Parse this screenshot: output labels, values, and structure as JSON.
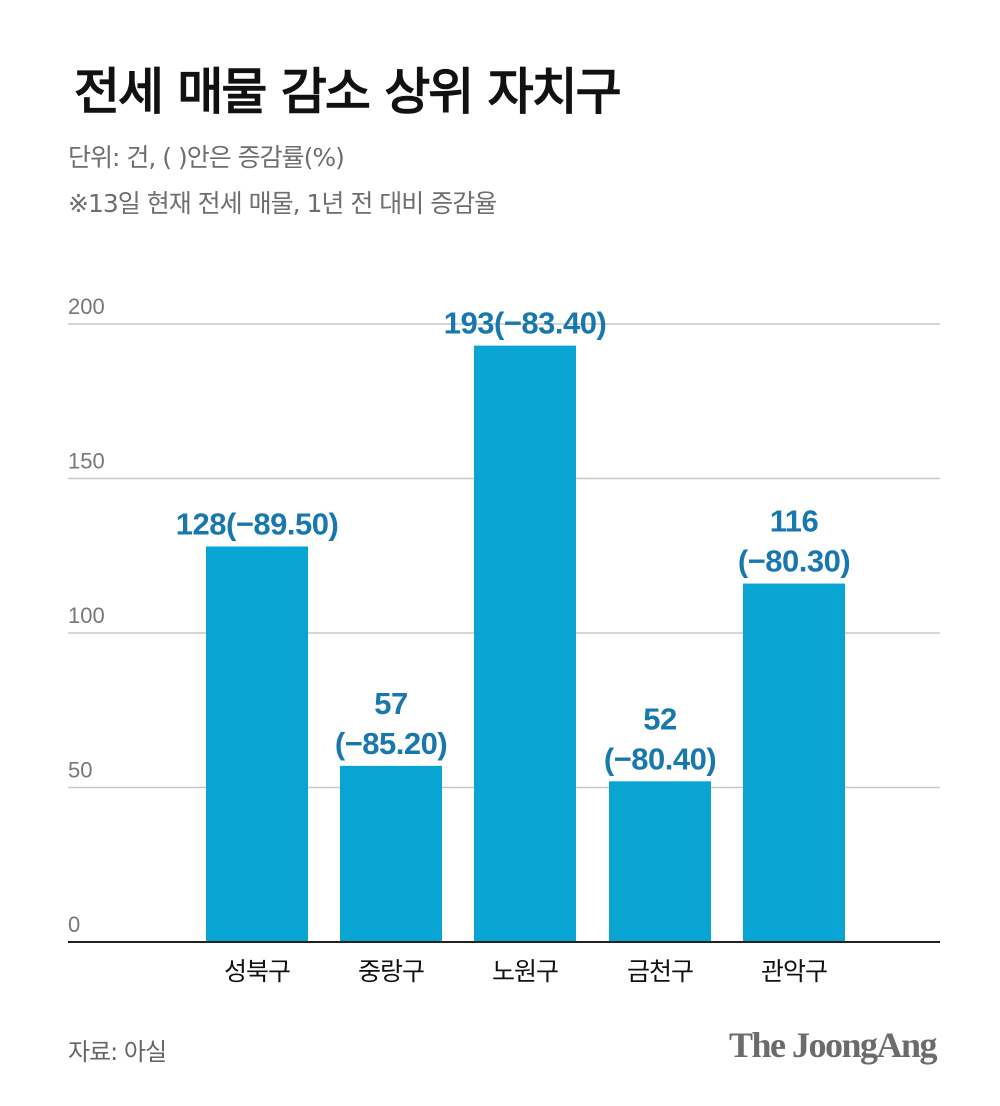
{
  "header": {
    "title": "전세 매물 감소 상위 자치구",
    "unit_note": "단위: 건, (  )안은 증감률(%)",
    "date_note": "※13일 현재 전세 매물, 1년 전 대비 증감율"
  },
  "footer": {
    "source": "자료: 아실",
    "logo": "The JoongAng"
  },
  "chart_data": {
    "type": "bar",
    "categories": [
      "성북구",
      "중랑구",
      "노원구",
      "금천구",
      "관악구"
    ],
    "values": [
      128,
      57,
      193,
      52,
      116
    ],
    "change_pct": [
      -89.5,
      -85.2,
      -83.4,
      -80.4,
      -80.3
    ],
    "data_labels": [
      [
        "128(−89.50)"
      ],
      [
        "57",
        "(−85.20)"
      ],
      [
        "193(−83.40)"
      ],
      [
        "52",
        "(−80.40)"
      ],
      [
        "116",
        "(−80.30)"
      ]
    ],
    "ylim": [
      0,
      200
    ],
    "yticks": [
      "0",
      "50",
      "100",
      "150",
      "200"
    ],
    "grid": true,
    "colors": {
      "bar": "#08a5d3",
      "label": "#1878ad",
      "grid": "#c8c8c8",
      "axis": "#222222",
      "tick": "#777777"
    }
  }
}
